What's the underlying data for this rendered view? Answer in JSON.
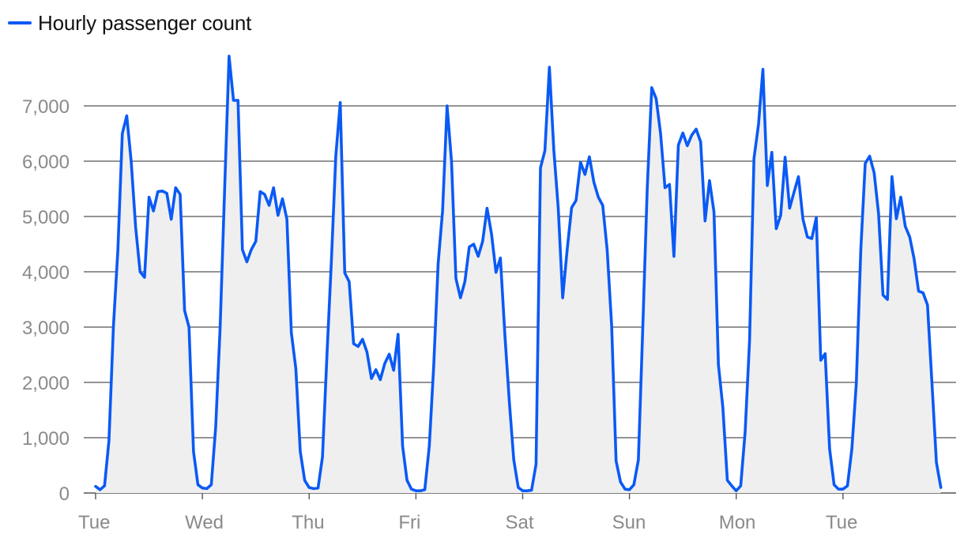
{
  "legend": {
    "label": "Hourly passenger count"
  },
  "colors": {
    "line": "#0a5af5",
    "area": "#efefef",
    "grid": "#555555",
    "tick_text": "#8a8a8a"
  },
  "chart_data": {
    "type": "area",
    "series": [
      {
        "name": "Hourly passenger count",
        "values": [
          120,
          60,
          130,
          950,
          3000,
          4400,
          6500,
          6820,
          6000,
          4800,
          4000,
          3900,
          5350,
          5100,
          5450,
          5460,
          5420,
          4950,
          5520,
          5400,
          3300,
          3000,
          750,
          150,
          90,
          80,
          150,
          1200,
          3000,
          5500,
          7900,
          7100,
          7100,
          4400,
          4180,
          4400,
          4550,
          5450,
          5400,
          5200,
          5520,
          5020,
          5320,
          4950,
          2900,
          2250,
          750,
          230,
          100,
          80,
          90,
          650,
          2500,
          4200,
          6100,
          7060,
          3980,
          3820,
          2700,
          2650,
          2780,
          2550,
          2070,
          2230,
          2050,
          2340,
          2510,
          2220,
          2870,
          850,
          230,
          70,
          40,
          40,
          60,
          850,
          2300,
          4150,
          5100,
          7000,
          6000,
          3880,
          3530,
          3820,
          4450,
          4500,
          4280,
          4550,
          5150,
          4680,
          3990,
          4250,
          2850,
          1650,
          600,
          100,
          40,
          40,
          50,
          520,
          5880,
          6190,
          7700,
          6200,
          5150,
          3530,
          4400,
          5160,
          5290,
          5980,
          5760,
          6080,
          5620,
          5350,
          5200,
          4400,
          3020,
          580,
          200,
          70,
          60,
          150,
          600,
          3000,
          5500,
          7330,
          7130,
          6500,
          5520,
          5580,
          4280,
          6290,
          6510,
          6280,
          6470,
          6580,
          6350,
          4920,
          5650,
          5080,
          2320,
          1550,
          230,
          130,
          40,
          130,
          1100,
          2750,
          6050,
          6660,
          7660,
          5560,
          6160,
          4780,
          5020,
          6070,
          5150,
          5440,
          5720,
          4950,
          4630,
          4600,
          4980,
          2400,
          2520,
          800,
          150,
          70,
          70,
          130,
          800,
          1980,
          4400,
          5960,
          6090,
          5790,
          5050,
          3580,
          3500,
          5720,
          4960,
          5350,
          4820,
          4630,
          4230,
          3650,
          3620,
          3400,
          2000,
          550,
          100
        ]
      }
    ],
    "x_tick_labels": [
      "Tue",
      "Wed",
      "Thu",
      "Fri",
      "Sat",
      "Sun",
      "Mon",
      "Tue"
    ],
    "x_tick_hours": [
      0,
      24,
      48,
      72,
      96,
      120,
      144,
      168
    ],
    "y_ticks": [
      0,
      1000,
      2000,
      3000,
      4000,
      5000,
      6000,
      7000
    ],
    "y_tick_labels": [
      "0",
      "1,000",
      "2,000",
      "3,000",
      "4,000",
      "5,000",
      "6,000",
      "7,000"
    ],
    "ylim": [
      0,
      7900
    ],
    "grid": true,
    "legend_position": "top-left"
  }
}
